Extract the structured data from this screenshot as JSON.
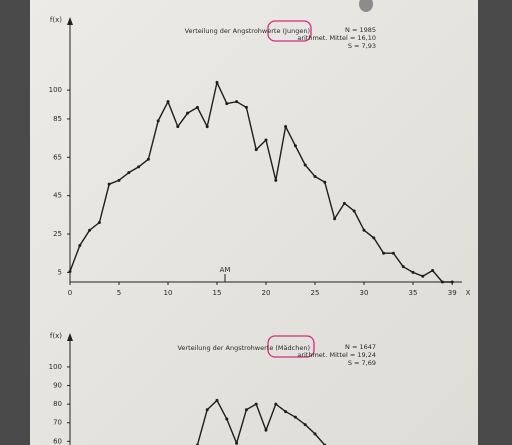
{
  "chart_data": [
    {
      "type": "line",
      "title": "Verteilung der Angstrohwerte (Jungen)",
      "stats": [
        "N = 1985",
        "arithmet. Mittel = 16,10",
        "S = 7,93"
      ],
      "annotation": "AM",
      "ylabel": "f(x)",
      "xlabel": "X",
      "x": [
        0,
        1,
        2,
        3,
        4,
        5,
        6,
        7,
        8,
        9,
        10,
        11,
        12,
        13,
        14,
        15,
        16,
        17,
        18,
        19,
        20,
        21,
        22,
        23,
        24,
        25,
        26,
        27,
        28,
        29,
        30,
        31,
        32,
        33,
        34,
        35,
        36,
        37,
        38,
        39
      ],
      "values": [
        5.5,
        19,
        27,
        31,
        51,
        53,
        57,
        60,
        64,
        84,
        94,
        81,
        88,
        91,
        81,
        104,
        93,
        94,
        91,
        69,
        74,
        53,
        81,
        71,
        61,
        55,
        52,
        33,
        41,
        37,
        27,
        23,
        15,
        15,
        8,
        5,
        3,
        6,
        0,
        0
      ],
      "color": "#1e1e1e",
      "xlim": [
        0,
        40
      ],
      "ylim": [
        0,
        135
      ],
      "xticks": [
        0,
        5,
        10,
        15,
        20,
        25,
        30,
        35,
        39
      ],
      "yticks": [
        5,
        25,
        45,
        65,
        85,
        100
      ]
    },
    {
      "type": "line",
      "title": "Verteilung der Angstrohwerte (Mädchen)",
      "stats": [
        "N = 1647",
        "arithmet. Mittel = 19,24",
        "S = 7,69"
      ],
      "ylabel": "f(x)",
      "x": [
        13,
        14,
        15,
        16,
        17,
        18,
        19,
        20,
        21,
        22,
        23,
        24,
        25,
        26
      ],
      "values": [
        58,
        77,
        82,
        72,
        59,
        77,
        80,
        66,
        80,
        76,
        73,
        69,
        64,
        58
      ],
      "color": "#1e1e1e",
      "xlim": [
        0,
        40
      ],
      "ylim": [
        0,
        115
      ],
      "yticks": [
        60,
        70,
        80,
        90,
        100
      ]
    }
  ]
}
